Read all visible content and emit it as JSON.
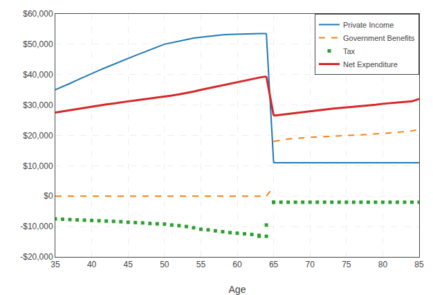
{
  "chart_data": {
    "type": "line",
    "xlabel": "Age",
    "xlim": [
      35,
      85
    ],
    "ylim": [
      -20000,
      60000
    ],
    "xticks": [
      35,
      40,
      45,
      50,
      55,
      60,
      65,
      70,
      75,
      80,
      85
    ],
    "yticks": [
      {
        "value": -20000,
        "label": "-$20,000"
      },
      {
        "value": -10000,
        "label": "-$10,000"
      },
      {
        "value": 0,
        "label": "$0"
      },
      {
        "value": 10000,
        "label": "$10,000"
      },
      {
        "value": 20000,
        "label": "$20,000"
      },
      {
        "value": 30000,
        "label": "$30,000"
      },
      {
        "value": 40000,
        "label": "$40,000"
      },
      {
        "value": 50000,
        "label": "$50,000"
      },
      {
        "value": 60000,
        "label": "$60,000"
      }
    ],
    "grid": true,
    "legend": "upper right",
    "series": [
      {
        "name": "Private Income",
        "type": "line",
        "line_style": "solid",
        "x": [
          35,
          36,
          37,
          38,
          39,
          40,
          41,
          42,
          43,
          44,
          45,
          46,
          47,
          48,
          49,
          50,
          51,
          52,
          53,
          54,
          55,
          56,
          57,
          58,
          59,
          60,
          61,
          62,
          63,
          64,
          null,
          64,
          65,
          null,
          65,
          66,
          67,
          68,
          69,
          70,
          71,
          72,
          73,
          74,
          75,
          76,
          77,
          78,
          79,
          80,
          81,
          82,
          83,
          84,
          85
        ],
        "values": [
          35000,
          36000,
          37100,
          38200,
          39300,
          40300,
          41400,
          42400,
          43400,
          44400,
          45300,
          46300,
          47200,
          48200,
          49100,
          50000,
          50500,
          51000,
          51500,
          52000,
          52300,
          52600,
          52900,
          53100,
          53200,
          53300,
          53400,
          53400,
          53500,
          53500,
          null,
          53500,
          11000,
          null,
          11000,
          11000,
          11000,
          11000,
          11000,
          11000,
          11000,
          11000,
          11000,
          11000,
          11000,
          11000,
          11000,
          11000,
          11000,
          11000,
          11000,
          11000,
          11000,
          11000,
          11000
        ]
      },
      {
        "name": "Government Benefits",
        "type": "line",
        "line_style": "dashed",
        "x": [
          35,
          36,
          37,
          38,
          39,
          40,
          41,
          42,
          43,
          44,
          45,
          46,
          47,
          48,
          49,
          50,
          51,
          52,
          53,
          54,
          55,
          56,
          57,
          58,
          59,
          60,
          61,
          62,
          63,
          64,
          null,
          64,
          65,
          null,
          65,
          66,
          67,
          68,
          69,
          70,
          71,
          72,
          73,
          74,
          75,
          76,
          77,
          78,
          79,
          80,
          81,
          82,
          83,
          84,
          85
        ],
        "values": [
          0,
          0,
          0,
          0,
          0,
          0,
          0,
          0,
          0,
          0,
          0,
          0,
          0,
          0,
          0,
          0,
          0,
          0,
          0,
          0,
          0,
          0,
          0,
          0,
          0,
          0,
          0,
          0,
          0,
          0,
          null,
          0,
          3000,
          null,
          18000,
          18400,
          18800,
          19000,
          19200,
          19400,
          19500,
          19600,
          19700,
          19800,
          19900,
          20000,
          20100,
          20300,
          20500,
          20600,
          20800,
          21000,
          21200,
          21500,
          22000
        ]
      },
      {
        "name": "Tax",
        "type": "scatter",
        "marker": "square",
        "x": [
          35,
          36,
          37,
          38,
          39,
          40,
          41,
          42,
          43,
          44,
          45,
          46,
          47,
          48,
          49,
          50,
          51,
          52,
          53,
          54,
          55,
          56,
          57,
          58,
          59,
          60,
          61,
          62,
          63,
          64,
          null,
          63,
          64,
          65,
          null,
          65,
          66,
          67,
          68,
          69,
          70,
          71,
          72,
          73,
          74,
          75,
          76,
          77,
          78,
          79,
          80,
          81,
          82,
          83,
          84,
          85
        ],
        "values": [
          -7500,
          -7600,
          -7700,
          -7800,
          -7900,
          -8000,
          -8100,
          -8200,
          -8300,
          -8400,
          -8600,
          -8700,
          -8800,
          -9000,
          -9100,
          -9200,
          -9500,
          -9700,
          -10000,
          -10400,
          -10900,
          -11100,
          -11400,
          -11700,
          -12000,
          -12200,
          -12400,
          -12600,
          -12900,
          -13200,
          null,
          -13200,
          -9500,
          -2000,
          null,
          -2000,
          -2000,
          -2000,
          -2000,
          -2000,
          -2000,
          -2000,
          -2000,
          -2000,
          -2000,
          -2000,
          -2000,
          -2000,
          -2000,
          -2000,
          -2000,
          -2000,
          -2000,
          -2000,
          -2000,
          -2000
        ]
      },
      {
        "name": "Net Expenditure",
        "type": "line",
        "line_style": "solid",
        "x": [
          35,
          36,
          37,
          38,
          39,
          40,
          41,
          42,
          43,
          44,
          45,
          46,
          47,
          48,
          49,
          50,
          51,
          52,
          53,
          54,
          55,
          56,
          57,
          58,
          59,
          60,
          61,
          62,
          63,
          64,
          null,
          64,
          65,
          null,
          65,
          66,
          67,
          68,
          69,
          70,
          71,
          72,
          73,
          74,
          75,
          76,
          77,
          78,
          79,
          80,
          81,
          82,
          83,
          84,
          85
        ],
        "values": [
          27500,
          27900,
          28200,
          28600,
          29000,
          29400,
          29800,
          30200,
          30500,
          30900,
          31200,
          31500,
          31800,
          32100,
          32400,
          32700,
          33100,
          33500,
          33900,
          34400,
          35000,
          35500,
          36000,
          36600,
          37100,
          37600,
          38100,
          38500,
          39000,
          39400,
          null,
          39400,
          26500,
          null,
          26500,
          26800,
          27100,
          27400,
          27700,
          28000,
          28200,
          28500,
          28800,
          29000,
          29200,
          29500,
          29700,
          29900,
          30100,
          30400,
          30600,
          30800,
          31000,
          31200,
          32000
        ]
      }
    ]
  }
}
